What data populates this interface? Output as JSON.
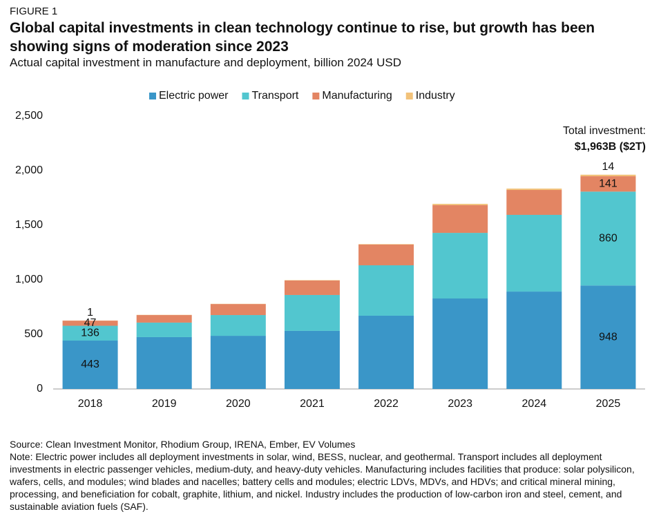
{
  "figure_label": "FIGURE 1",
  "chart_data": {
    "type": "stacked_bar",
    "title": "Global capital investments in clean technology continue to rise, but growth has been showing signs of moderation since 2023",
    "subtitle": "Actual capital investment in manufacture and deployment, billion 2024 USD",
    "categories": [
      "2018",
      "2019",
      "2020",
      "2021",
      "2022",
      "2023",
      "2024",
      "2025"
    ],
    "series": [
      {
        "name": "Electric power",
        "color": "#3a96c8",
        "values": [
          443,
          475,
          487,
          532,
          671,
          829,
          892,
          948
        ],
        "value_labels": [
          443,
          null,
          null,
          null,
          null,
          null,
          null,
          948
        ]
      },
      {
        "name": "Transport",
        "color": "#52c6cf",
        "values": [
          136,
          133,
          190,
          329,
          462,
          601,
          703,
          860
        ],
        "value_labels": [
          136,
          null,
          null,
          null,
          null,
          null,
          null,
          860
        ]
      },
      {
        "name": "Manufacturing",
        "color": "#e38563",
        "values": [
          47,
          69,
          101,
          133,
          190,
          254,
          228,
          141
        ],
        "value_labels": [
          47,
          null,
          null,
          null,
          null,
          null,
          null,
          141
        ]
      },
      {
        "name": "Industry",
        "color": "#f2c27a",
        "values": [
          1,
          2,
          2,
          3,
          4,
          12,
          13,
          14
        ],
        "value_labels": [
          1,
          null,
          null,
          null,
          null,
          null,
          null,
          14
        ]
      }
    ],
    "ylim": [
      0,
      2500
    ],
    "yticks": [
      0,
      {
        "value": 500,
        "label": "500"
      },
      {
        "value": 1000,
        "label": "1,000"
      },
      {
        "value": 1500,
        "label": "1,500"
      },
      {
        "value": 2000,
        "label": "2,000"
      },
      {
        "value": 2500,
        "label": "2,500"
      }
    ],
    "annotation": {
      "line1": "Total investment:",
      "line2": "$1,963B ($2T)"
    }
  },
  "source": "Source: Clean Investment Monitor, Rhodium Group, IRENA, Ember, EV Volumes",
  "note": "Note: Electric power includes all deployment investments in solar, wind, BESS, nuclear, and geothermal. Transport includes all deployment investments in electric passenger vehicles, medium-duty, and heavy-duty vehicles. Manufacturing includes facilities that produce: solar polysilicon, wafers, cells, and modules; wind blades and nacelles; battery cells and modules; electric LDVs, MDVs, and HDVs; and critical mineral mining, processing, and beneficiation for cobalt, graphite, lithium, and nickel. Industry includes the production of low-carbon iron and steel, cement, and sustainable aviation fuels (SAF)."
}
